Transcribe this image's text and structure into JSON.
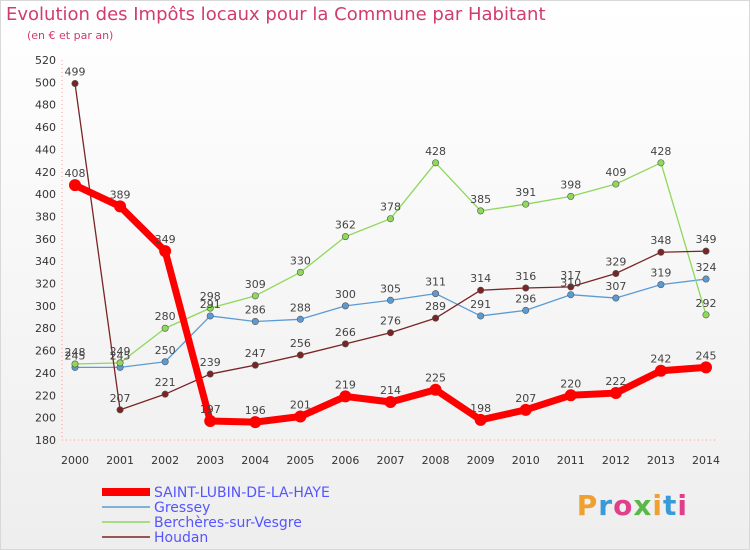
{
  "header": {
    "title": "Evolution des Impôts locaux pour la Commune par Habitant",
    "subtitle": "(en € et par an)"
  },
  "logo": {
    "text": "Proxiti",
    "colors": [
      "#f0a030",
      "#3a9ad9",
      "#e0408a",
      "#5ab848"
    ]
  },
  "chart_data": {
    "type": "line",
    "x": [
      2000,
      2001,
      2002,
      2003,
      2004,
      2005,
      2006,
      2007,
      2008,
      2009,
      2010,
      2011,
      2012,
      2013,
      2014
    ],
    "ylim": [
      180,
      520
    ],
    "yticks": [
      180,
      200,
      220,
      240,
      260,
      280,
      300,
      320,
      340,
      360,
      380,
      400,
      420,
      440,
      460,
      480,
      500,
      520
    ],
    "grid": false,
    "legend": "bottom-left",
    "series": [
      {
        "name": "SAINT-LUBIN-DE-LA-HAYE",
        "color": "#ff0000",
        "emphasis": true,
        "values": [
          408,
          389,
          349,
          197,
          196,
          201,
          219,
          214,
          225,
          198,
          207,
          220,
          222,
          242,
          245
        ]
      },
      {
        "name": "Gressey",
        "color": "#5b9bd5",
        "values": [
          245,
          245,
          250,
          291,
          286,
          288,
          300,
          305,
          311,
          291,
          296,
          310,
          307,
          319,
          324
        ]
      },
      {
        "name": "Berchères-sur-Vesgre",
        "color": "#8ed85a",
        "values": [
          248,
          249,
          280,
          298,
          309,
          330,
          362,
          378,
          428,
          385,
          391,
          398,
          409,
          428,
          292
        ]
      },
      {
        "name": "Houdan",
        "color": "#7a2424",
        "values": [
          499,
          207,
          221,
          239,
          247,
          256,
          266,
          276,
          289,
          314,
          316,
          317,
          329,
          348,
          349
        ]
      }
    ]
  }
}
